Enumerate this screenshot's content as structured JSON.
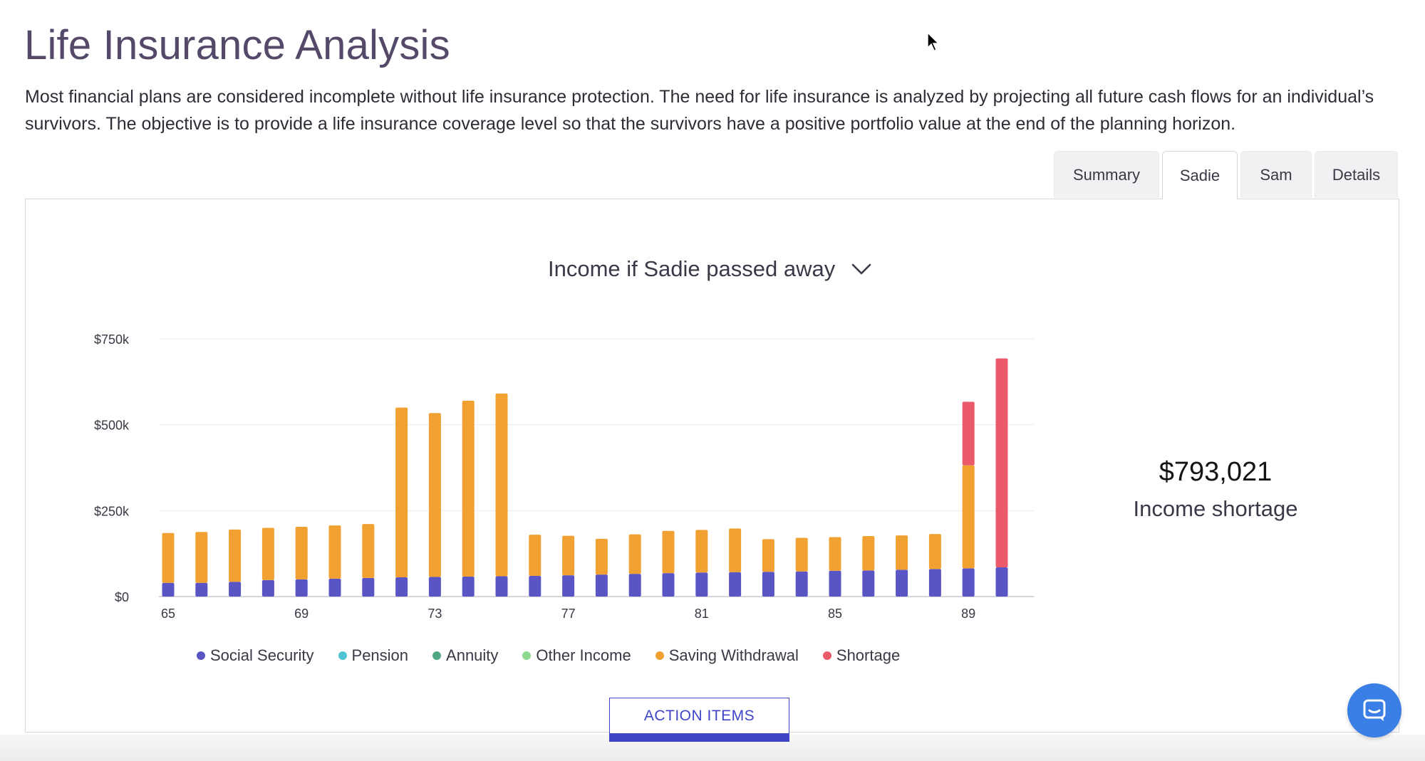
{
  "page": {
    "title": "Life Insurance Analysis",
    "intro": "Most financial plans are considered incomplete without life insurance protection. The need for life insurance is analyzed by projecting all future cash flows for an individual’s survivors. The objective is to provide a life insurance coverage level so that the survivors have a positive portfolio value at the end of the planning horizon."
  },
  "tabs": [
    {
      "label": "Summary",
      "active": false
    },
    {
      "label": "Sadie",
      "active": true
    },
    {
      "label": "Sam",
      "active": false
    },
    {
      "label": "Details",
      "active": false
    }
  ],
  "panel": {
    "chart_selector_label": "Income if Sadie passed away",
    "chevron_icon": "chevron-down-icon",
    "summary_value": "$793,021",
    "summary_label": "Income shortage",
    "action_button_label": "ACTION ITEMS"
  },
  "chat": {
    "icon": "chat-icon",
    "color": "#3a7fe6"
  },
  "colors": {
    "accent": "#3f45c6"
  },
  "chart_data": {
    "type": "bar",
    "stacked": true,
    "categories": [
      65,
      66,
      67,
      68,
      69,
      70,
      71,
      72,
      73,
      74,
      75,
      76,
      77,
      78,
      79,
      80,
      81,
      82,
      83,
      84,
      85,
      86,
      87,
      88,
      89,
      90
    ],
    "x_tick_labels": [
      "65",
      "69",
      "73",
      "77",
      "81",
      "85",
      "89"
    ],
    "y_ticks": [
      {
        "value": 0,
        "label": "$0"
      },
      {
        "value": 250000,
        "label": "$250k"
      },
      {
        "value": 500000,
        "label": "$500k"
      },
      {
        "value": 750000,
        "label": "$750k"
      }
    ],
    "ylim": [
      0,
      750000
    ],
    "grid": true,
    "legend_position": "bottom",
    "series": [
      {
        "name": "Social Security",
        "color": "#5a55c4",
        "values": [
          40000,
          40000,
          43000,
          48000,
          50000,
          52000,
          54000,
          56000,
          57000,
          58000,
          59000,
          60000,
          62000,
          64000,
          66000,
          68000,
          70000,
          71000,
          72000,
          73000,
          75000,
          76000,
          78000,
          80000,
          82000,
          85000
        ]
      },
      {
        "name": "Pension",
        "color": "#4fc3d4",
        "values": [
          0,
          0,
          0,
          0,
          0,
          0,
          0,
          0,
          0,
          0,
          0,
          0,
          0,
          0,
          0,
          0,
          0,
          0,
          0,
          0,
          0,
          0,
          0,
          0,
          0,
          0
        ]
      },
      {
        "name": "Annuity",
        "color": "#4fa883",
        "values": [
          0,
          0,
          0,
          0,
          0,
          0,
          0,
          0,
          0,
          0,
          0,
          0,
          0,
          0,
          0,
          0,
          0,
          0,
          0,
          0,
          0,
          0,
          0,
          0,
          0,
          0
        ]
      },
      {
        "name": "Other Income",
        "color": "#8fd88f",
        "values": [
          0,
          0,
          0,
          0,
          0,
          0,
          0,
          0,
          0,
          0,
          0,
          0,
          0,
          0,
          0,
          0,
          0,
          0,
          0,
          0,
          0,
          0,
          0,
          0,
          0,
          0
        ]
      },
      {
        "name": "Saving Withdrawal",
        "color": "#f0a132",
        "values": [
          145000,
          148000,
          152000,
          152000,
          153000,
          155000,
          157000,
          494000,
          477000,
          512000,
          532000,
          120000,
          115000,
          104000,
          115000,
          123000,
          124000,
          127000,
          95000,
          98000,
          98000,
          100000,
          100000,
          102000,
          300000,
          0
        ]
      },
      {
        "name": "Shortage",
        "color": "#eb5a6b",
        "values": [
          0,
          0,
          0,
          0,
          0,
          0,
          0,
          0,
          0,
          0,
          0,
          0,
          0,
          0,
          0,
          0,
          0,
          0,
          0,
          0,
          0,
          0,
          0,
          0,
          185000,
          608000
        ]
      }
    ]
  }
}
